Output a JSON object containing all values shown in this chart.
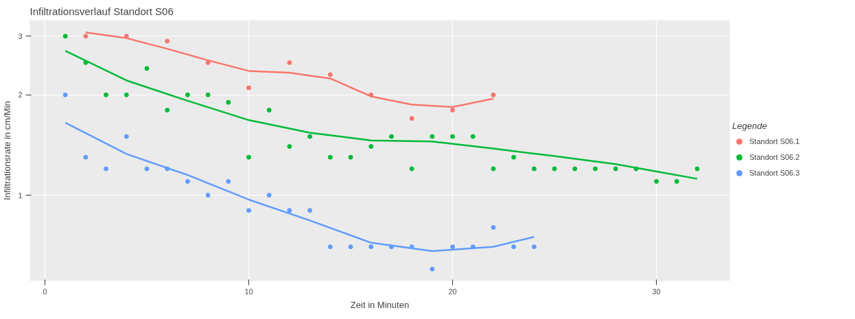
{
  "chart_data": {
    "type": "scatter",
    "title": "Infiltrationsverlauf Standort S06",
    "xlabel": "Zeit in Minuten",
    "ylabel": "Infiltrationsrate in cm/Min",
    "legend_title": "Legende",
    "log": "y",
    "xlim": [
      -0.74,
      33.6
    ],
    "ylim": [
      0.553,
      3.35
    ],
    "xticks": [
      0,
      10,
      20,
      30
    ],
    "yticks": [
      1,
      2,
      3
    ],
    "grid": true,
    "legend": "right",
    "marker": "circle",
    "series": [
      {
        "name": "Standort S06.1",
        "color": "#f8766d",
        "x": [
          2,
          4,
          6,
          8,
          10,
          12,
          14,
          16,
          18,
          20,
          22
        ],
        "values": [
          3.0,
          3.0,
          2.9,
          2.5,
          2.1,
          2.5,
          2.3,
          2.0,
          1.7,
          1.8,
          2.0
        ]
      },
      {
        "name": "Standort S06.2",
        "color": "#00ba38",
        "x": [
          1,
          2,
          3,
          4,
          5,
          6,
          7,
          8,
          9,
          10,
          11,
          12,
          13,
          14,
          15,
          16,
          17,
          18,
          19,
          20,
          21,
          22,
          23,
          24,
          25,
          26,
          27,
          28,
          29,
          30,
          31,
          32
        ],
        "values": [
          3.0,
          2.5,
          2.0,
          2.0,
          2.4,
          1.8,
          2.0,
          2.0,
          1.9,
          1.3,
          1.8,
          1.4,
          1.5,
          1.3,
          1.3,
          1.4,
          1.5,
          1.2,
          1.5,
          1.5,
          1.5,
          1.2,
          1.3,
          1.2,
          1.2,
          1.2,
          1.2,
          1.2,
          1.2,
          1.1,
          1.1,
          1.2
        ]
      },
      {
        "name": "Standort S06.3",
        "color": "#619cff",
        "x": [
          1,
          2,
          3,
          4,
          5,
          6,
          7,
          8,
          9,
          10,
          11,
          12,
          13,
          14,
          15,
          16,
          17,
          18,
          19,
          20,
          21,
          22,
          23,
          24
        ],
        "values": [
          2.0,
          1.3,
          1.2,
          1.5,
          1.2,
          1.2,
          1.1,
          1.0,
          1.1,
          0.9,
          1.0,
          0.9,
          0.9,
          0.7,
          0.7,
          0.7,
          0.7,
          0.7,
          0.6,
          0.7,
          0.7,
          0.8,
          0.7,
          0.7
        ]
      },
      {
        "type": "line",
        "marker": "none",
        "color": "#f8766d",
        "x": [
          2,
          4,
          6,
          8,
          10,
          12,
          14,
          16,
          18,
          20,
          22
        ],
        "values": [
          3.08,
          2.96,
          2.75,
          2.54,
          2.36,
          2.33,
          2.24,
          1.98,
          1.87,
          1.84,
          1.95
        ]
      },
      {
        "type": "line",
        "marker": "none",
        "color": "#00ba38",
        "x": [
          1,
          4,
          7,
          10,
          13,
          16,
          19,
          22,
          25,
          28,
          32
        ],
        "values": [
          2.71,
          2.21,
          1.92,
          1.68,
          1.54,
          1.46,
          1.45,
          1.38,
          1.31,
          1.24,
          1.12
        ]
      },
      {
        "type": "line",
        "marker": "none",
        "color": "#619cff",
        "x": [
          1,
          4,
          7,
          10,
          13,
          16,
          19,
          22,
          24
        ],
        "values": [
          1.65,
          1.33,
          1.15,
          0.97,
          0.84,
          0.72,
          0.68,
          0.7,
          0.75
        ]
      }
    ]
  }
}
